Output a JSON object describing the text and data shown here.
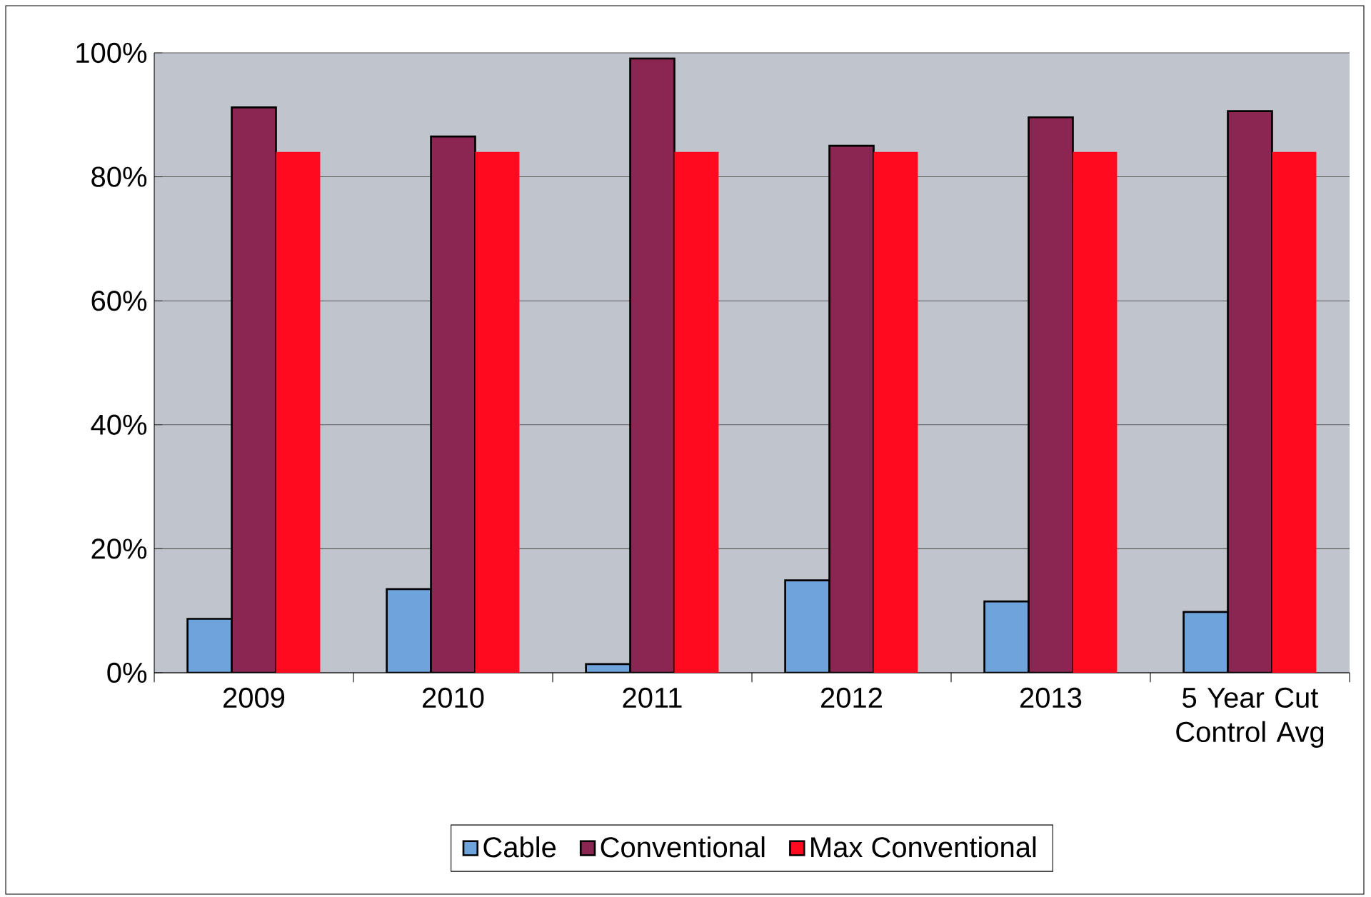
{
  "chart_data": {
    "type": "bar",
    "categories": [
      "2009",
      "2010",
      "2011",
      "2012",
      "2013",
      "5 Year Cut Control Avg"
    ],
    "series": [
      {
        "name": "Cable",
        "color": "#6fa3dc",
        "values": [
          8.7,
          13.5,
          1.4,
          14.9,
          11.5,
          9.8
        ]
      },
      {
        "name": "Conventional",
        "color": "#8b2552",
        "values": [
          91.2,
          86.5,
          99.1,
          85,
          89.6,
          90.6
        ]
      },
      {
        "name": "Max Conventional",
        "color": "#ff0a1e",
        "values": [
          84,
          84,
          84,
          84,
          84,
          84
        ]
      }
    ],
    "ylim": [
      0,
      100
    ],
    "yticks": [
      {
        "value": 0,
        "label": "0%"
      },
      {
        "value": 20,
        "label": "20%"
      },
      {
        "value": 40,
        "label": "40%"
      },
      {
        "value": 60,
        "label": "60%"
      },
      {
        "value": 80,
        "label": "80%"
      },
      {
        "value": 100,
        "label": "100%"
      }
    ],
    "grid": "y",
    "legend": "bottom"
  }
}
